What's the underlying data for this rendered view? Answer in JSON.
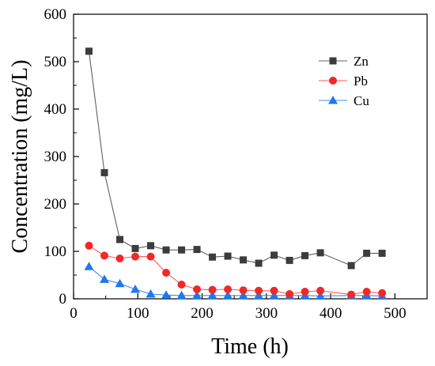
{
  "chart_data": {
    "type": "line",
    "xlabel": "Time (h)",
    "ylabel": "Concentration (mg/L)",
    "xlim": [
      0,
      550
    ],
    "ylim": [
      0,
      600
    ],
    "x_ticks": [
      "0",
      "100",
      "200",
      "300",
      "400",
      "500"
    ],
    "y_ticks": [
      "0",
      "100",
      "200",
      "300",
      "400",
      "500",
      "600"
    ],
    "grid": false,
    "legend_position": "top-right",
    "x": [
      24,
      48,
      72,
      96,
      120,
      144,
      168,
      192,
      216,
      240,
      264,
      288,
      312,
      336,
      360,
      384,
      432,
      456,
      480
    ],
    "series": [
      {
        "name": "Zn",
        "marker": "square",
        "color": "#606060",
        "marker_color": "#3c3c3c",
        "values": [
          522,
          266,
          125,
          106,
          112,
          103,
          103,
          104,
          88,
          90,
          82,
          75,
          92,
          81,
          91,
          97,
          70,
          96,
          96
        ]
      },
      {
        "name": "Pb",
        "marker": "circle",
        "color": "#ff5a5a",
        "marker_color": "#f02828",
        "values": [
          112,
          91,
          85,
          89,
          89,
          55,
          30,
          20,
          19,
          20,
          18,
          17,
          17,
          10,
          15,
          17,
          9,
          15,
          12
        ]
      },
      {
        "name": "Cu",
        "marker": "triangle",
        "color": "#3c8cf0",
        "marker_color": "#1e78f0",
        "values": [
          68,
          41,
          32,
          20,
          10,
          8,
          7,
          7,
          7,
          7,
          7,
          7,
          7,
          7,
          7,
          6,
          7,
          7,
          6
        ]
      }
    ]
  }
}
